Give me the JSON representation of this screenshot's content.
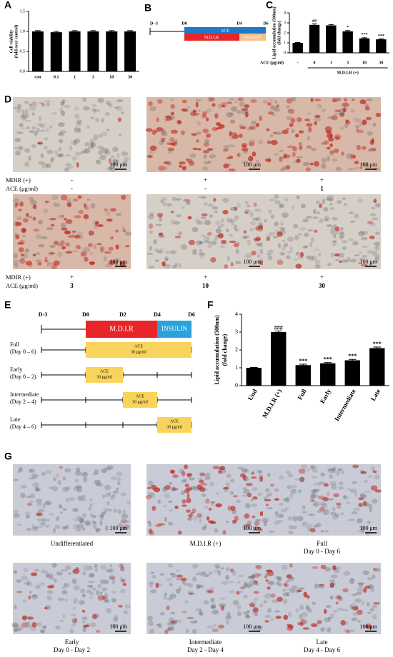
{
  "chart_data": [
    {
      "type": "bar",
      "panel": "A",
      "ylabel": [
        "Cell viability",
        "(fold over control)"
      ],
      "categories": [
        "con",
        "0.1",
        "1",
        "3",
        "10",
        "30"
      ],
      "values": [
        1.0,
        0.98,
        1.0,
        1.0,
        1.0,
        1.0
      ],
      "errors": [
        0.02,
        0.02,
        0.02,
        0.02,
        0.02,
        0.02
      ],
      "color": "#000000",
      "ylim": [
        0,
        1.5
      ],
      "yticks": [
        {
          "value": 0,
          "label": "0.0"
        },
        {
          "value": 0.5,
          "label": "0.5"
        },
        {
          "value": 1,
          "label": "1.0"
        },
        {
          "value": 1.5,
          "label": "1.5"
        }
      ]
    },
    {
      "type": "bar",
      "panel": "C",
      "ylabel": [
        "Lipid accumulation (500nm)",
        "(fold change)"
      ],
      "xlabel": "ACE (μg/ml)",
      "group_label": "M.D.I.R (+)",
      "categories": [
        "-",
        "0",
        "1",
        "3",
        "10",
        "30"
      ],
      "values": [
        1.0,
        2.8,
        2.75,
        2.15,
        1.45,
        1.35
      ],
      "errors": [
        0.03,
        0.1,
        0.08,
        0.08,
        0.06,
        0.05
      ],
      "significance": [
        null,
        "##",
        null,
        "*",
        "***",
        "***"
      ],
      "color": "#000000",
      "ylim": [
        0,
        4
      ],
      "yticks": [
        0,
        1,
        2,
        3,
        4
      ]
    },
    {
      "type": "bar",
      "panel": "F",
      "ylabel": [
        "Lipid accumulation (500nm)",
        "(fold change)"
      ],
      "categories": [
        "Und",
        "M.D.I.R (+)",
        "Full",
        "Early",
        "Intermediate",
        "Late"
      ],
      "values": [
        1.0,
        3.0,
        1.15,
        1.25,
        1.42,
        2.1
      ],
      "errors": [
        0.02,
        0.06,
        0.05,
        0.04,
        0.05,
        0.06
      ],
      "significance": [
        null,
        "###",
        "***",
        "***",
        "***",
        "***"
      ],
      "color": "#000000",
      "ylim": [
        0,
        4
      ],
      "yticks": [
        0,
        1,
        2,
        3,
        4
      ]
    }
  ],
  "panel_b": {
    "label": "B",
    "days": [
      "D -3",
      "D0",
      "D4",
      "D6"
    ],
    "ace": "ACE",
    "mdir": "M.D.I.R",
    "insulin": "INSULIN"
  },
  "panel_d": {
    "label": "D",
    "scale_bar": "100 μm",
    "row_labels": [
      "MDIR (+)",
      "ACE (μg/ml)"
    ],
    "images": [
      {
        "mdir": "-",
        "ace": "-"
      },
      {
        "mdir": "+",
        "ace": "-"
      },
      {
        "mdir": "+",
        "ace": "1"
      },
      {
        "mdir": "+",
        "ace": "3"
      },
      {
        "mdir": "+",
        "ace": "10"
      },
      {
        "mdir": "+",
        "ace": "30"
      }
    ]
  },
  "panel_e": {
    "label": "E",
    "days": [
      "D-3",
      "D0",
      "D2",
      "D4",
      "D6"
    ],
    "mdir": "M.D.I.R",
    "insulin": "INSULIN",
    "rows": [
      {
        "name": "Full",
        "period": "(Day 0 – 6)",
        "treatment": "ACE",
        "dose": "30 μg/ml"
      },
      {
        "name": "Early",
        "period": "(Day 0 – 2)",
        "treatment": "ACE",
        "dose": "30 μg/ml"
      },
      {
        "name": "Intermediate",
        "period": "(Day 2 – 4)",
        "treatment": "ACE",
        "dose": "30 μg/ml"
      },
      {
        "name": "Late",
        "period": "(Day 4 – 6)",
        "treatment": "ACE",
        "dose": "30 μg/ml"
      }
    ]
  },
  "panel_g": {
    "label": "G",
    "scale_bar": "100 μm",
    "images": [
      {
        "caption": [
          "Undifferentiated"
        ]
      },
      {
        "caption": [
          "M.D.I.R (+)"
        ]
      },
      {
        "caption": [
          "Full",
          "Day 0 - Day 6"
        ]
      },
      {
        "caption": [
          "Early",
          "Day 0 - Day 2"
        ]
      },
      {
        "caption": [
          "Intermediate",
          "Day 2 - Day 4"
        ]
      },
      {
        "caption": [
          "Late",
          "Day 4 - Day 6"
        ]
      }
    ]
  }
}
